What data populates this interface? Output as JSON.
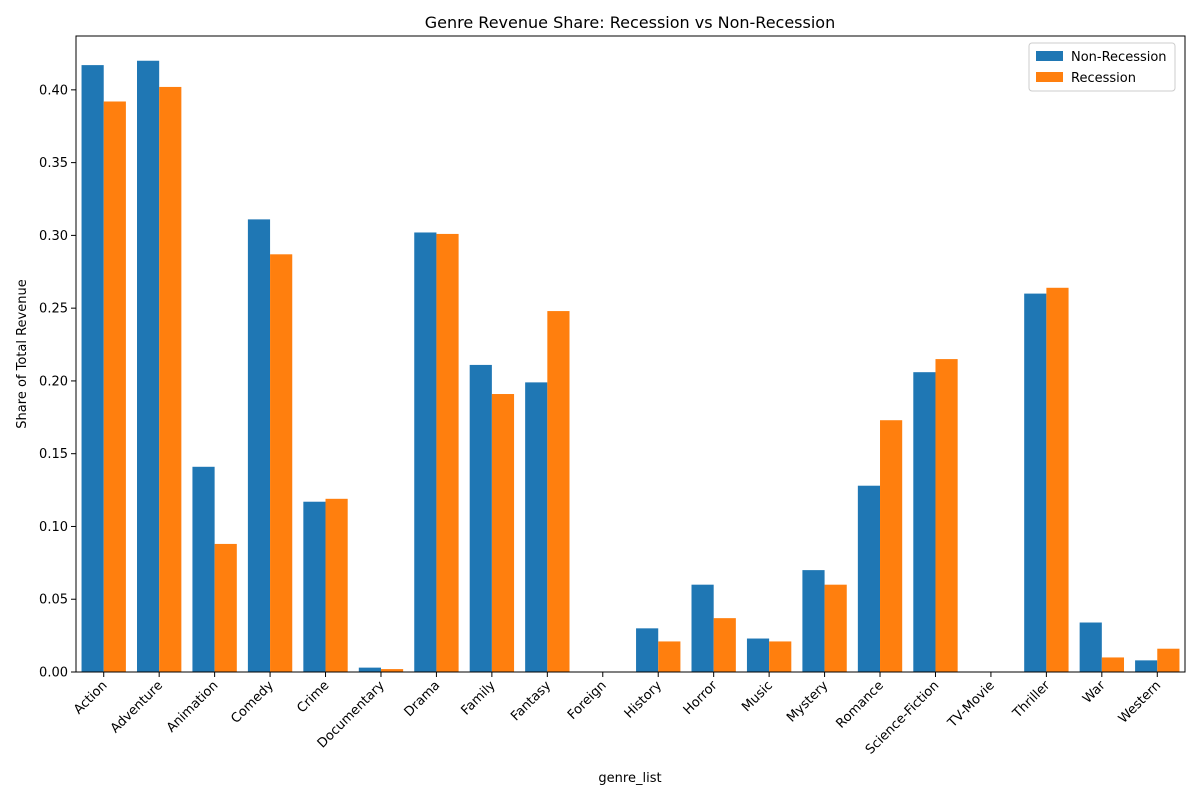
{
  "chart_data": {
    "type": "bar",
    "title": "Genre Revenue Share: Recession vs Non-Recession",
    "xlabel": "genre_list",
    "ylabel": "Share of Total Revenue",
    "ylim": [
      0,
      0.437
    ],
    "yticks": [
      0.0,
      0.05,
      0.1,
      0.15,
      0.2,
      0.25,
      0.3,
      0.35,
      0.4
    ],
    "ytick_labels": [
      "0.00",
      "0.05",
      "0.10",
      "0.15",
      "0.20",
      "0.25",
      "0.30",
      "0.35",
      "0.40"
    ],
    "grid": false,
    "legend_position": "top-right",
    "categories": [
      "Action",
      "Adventure",
      "Animation",
      "Comedy",
      "Crime",
      "Documentary",
      "Drama",
      "Family",
      "Fantasy",
      "Foreign",
      "History",
      "Horror",
      "Music",
      "Mystery",
      "Romance",
      "Science-Fiction",
      "TV-Movie",
      "Thriller",
      "War",
      "Western"
    ],
    "series": [
      {
        "name": "Non-Recession",
        "color": "#1f77b4",
        "values": [
          0.417,
          0.42,
          0.141,
          0.311,
          0.117,
          0.003,
          0.302,
          0.211,
          0.199,
          0.0,
          0.03,
          0.06,
          0.023,
          0.07,
          0.128,
          0.206,
          0.0,
          0.26,
          0.034,
          0.008
        ]
      },
      {
        "name": "Recession",
        "color": "#ff7f0e",
        "values": [
          0.392,
          0.402,
          0.088,
          0.287,
          0.119,
          0.002,
          0.301,
          0.191,
          0.248,
          0.0,
          0.021,
          0.037,
          0.021,
          0.06,
          0.173,
          0.215,
          0.0,
          0.264,
          0.01,
          0.016
        ]
      }
    ]
  }
}
